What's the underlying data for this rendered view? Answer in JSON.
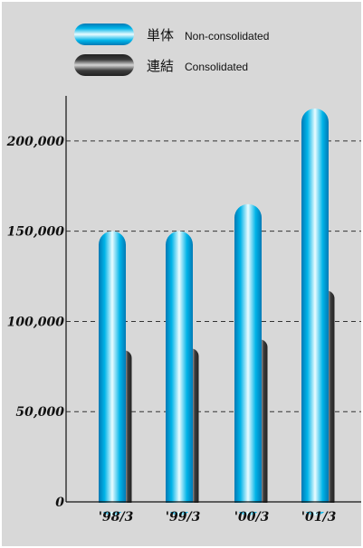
{
  "chart_data": {
    "type": "bar",
    "categories": [
      "'98/3",
      "'99/3",
      "'00/3",
      "'01/3"
    ],
    "series": [
      {
        "name": "単体 Non-consolidated",
        "label_jp": "単体",
        "label_en": "Non-consolidated",
        "values": [
          150000,
          150000,
          165000,
          218000
        ],
        "color": "#00b4e8"
      },
      {
        "name": "連結 Consolidated",
        "label_jp": "連結",
        "label_en": "Consolidated",
        "values": [
          84000,
          85000,
          90000,
          117000
        ],
        "color": "#3a3a3a"
      }
    ],
    "yticks": [
      "0",
      "50,000",
      "100,000",
      "150,000",
      "200,000"
    ],
    "ytick_values": [
      0,
      50000,
      100000,
      150000,
      200000
    ],
    "ylim": [
      0,
      225000
    ],
    "grid": "dashed horizontal",
    "legend": "top"
  }
}
